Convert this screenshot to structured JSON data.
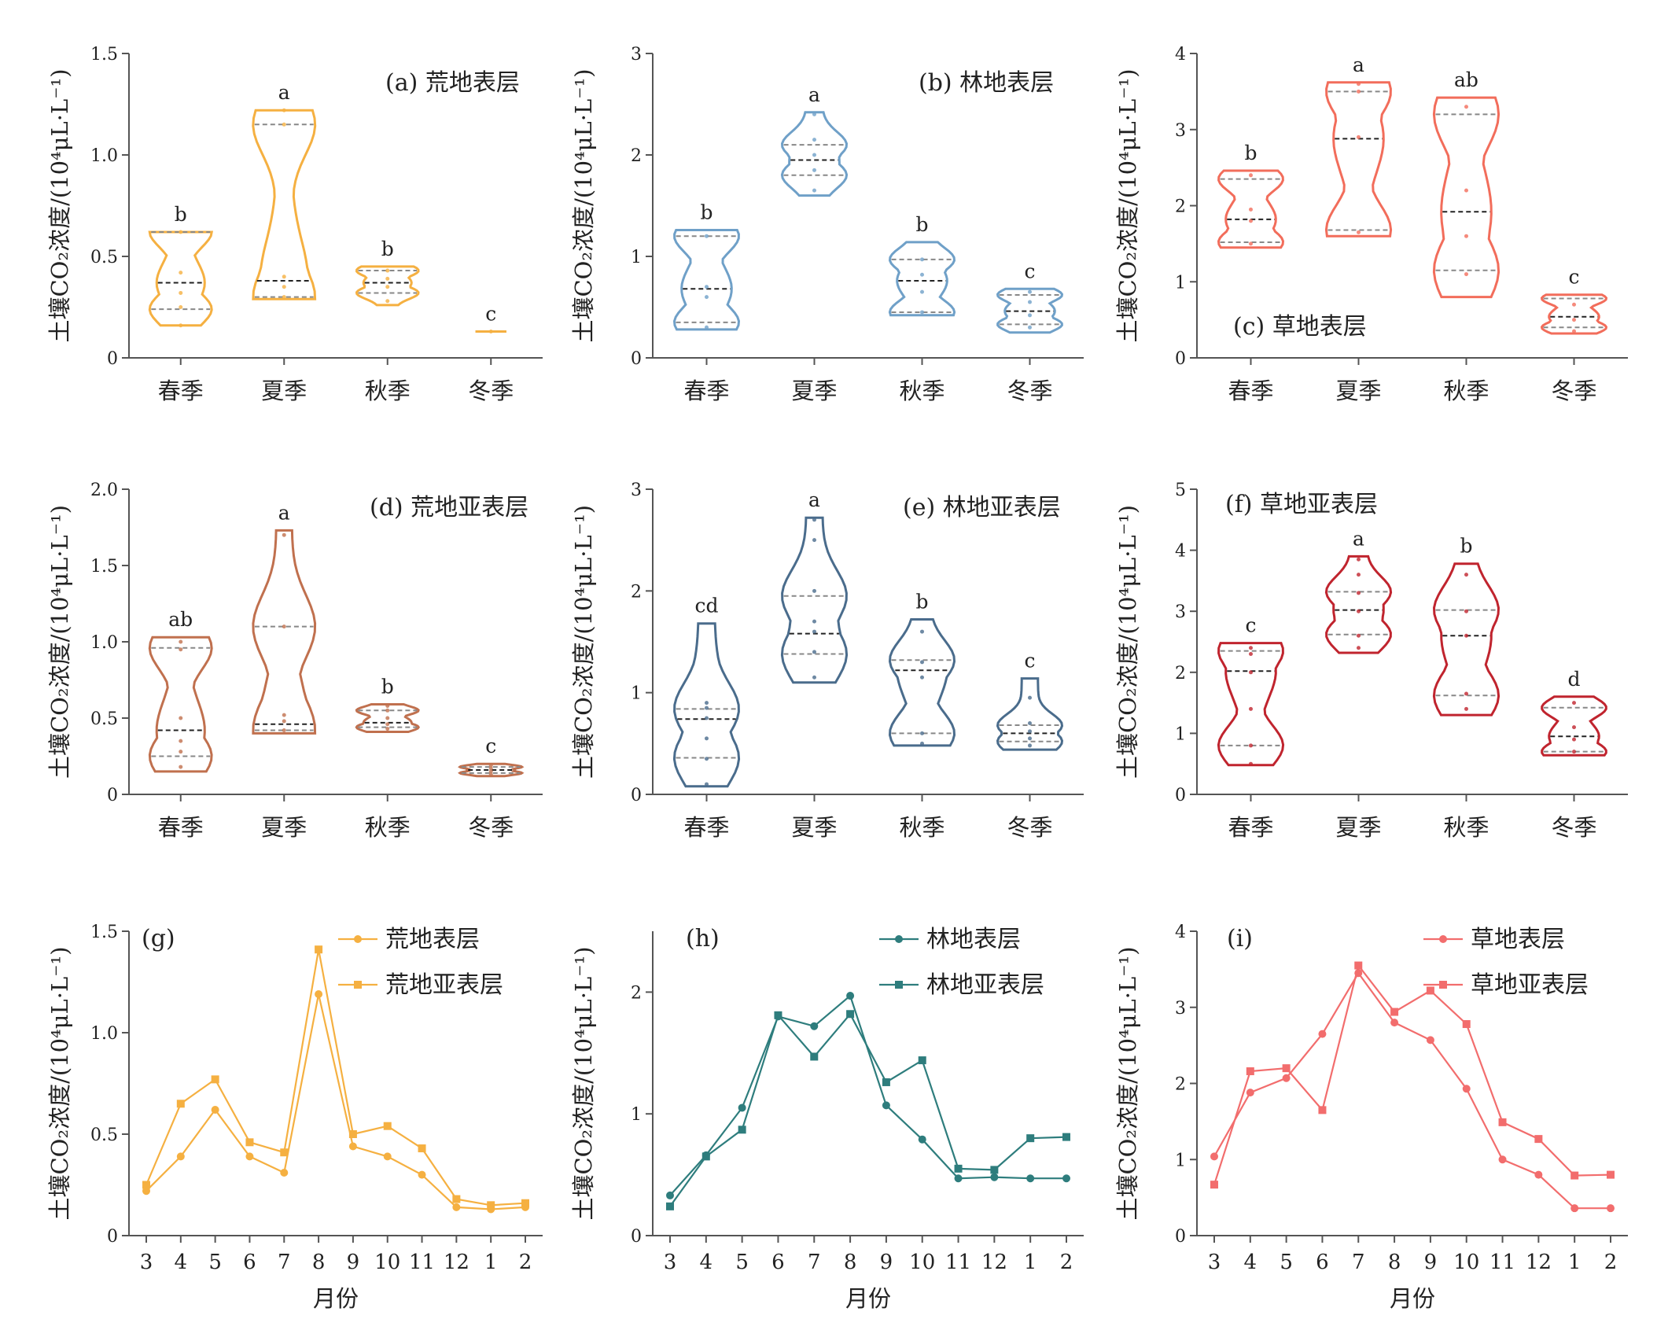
{
  "chart_data": [
    {
      "id": "a",
      "type": "violin",
      "title": "(a) 荒地表层",
      "ylabel": "土壤CO₂浓度/(10⁴μL·L⁻¹)",
      "ylim": [
        0,
        1.5
      ],
      "yticks": [
        0,
        0.5,
        1.0,
        1.5
      ],
      "ytick_labels": [
        "0",
        "0.5",
        "1.0",
        "1.5"
      ],
      "categories": [
        "春季",
        "夏季",
        "秋季",
        "冬季"
      ],
      "color": "#f5b041",
      "violins": [
        {
          "min": 0.16,
          "max": 0.62,
          "median": 0.37,
          "q1": 0.24,
          "q3": 0.62,
          "points": [
            0.16,
            0.25,
            0.32,
            0.42,
            0.62
          ],
          "label": "b"
        },
        {
          "min": 0.29,
          "max": 1.22,
          "median": 0.38,
          "q1": 0.3,
          "q3": 1.15,
          "points": [
            0.3,
            0.35,
            0.4,
            1.15,
            1.22
          ],
          "label": "a"
        },
        {
          "min": 0.26,
          "max": 0.45,
          "median": 0.37,
          "q1": 0.32,
          "q3": 0.43,
          "points": [
            0.28,
            0.35,
            0.39,
            0.43
          ],
          "label": "b"
        },
        {
          "min": 0.13,
          "max": 0.13,
          "median": 0.13,
          "q1": 0.13,
          "q3": 0.13,
          "points": [
            0.13
          ],
          "label": "c"
        }
      ]
    },
    {
      "id": "b",
      "type": "violin",
      "title": "(b) 林地表层",
      "ylabel": "土壤CO₂浓度/(10⁴μL·L⁻¹)",
      "ylim": [
        0,
        3
      ],
      "yticks": [
        0,
        1,
        2,
        3
      ],
      "ytick_labels": [
        "0",
        "1",
        "2",
        "3"
      ],
      "categories": [
        "春季",
        "夏季",
        "秋季",
        "冬季"
      ],
      "color": "#6fa0c8",
      "violins": [
        {
          "min": 0.28,
          "max": 1.26,
          "median": 0.68,
          "q1": 0.35,
          "q3": 1.2,
          "points": [
            0.3,
            0.6,
            0.7,
            1.2
          ],
          "label": "b"
        },
        {
          "min": 1.6,
          "max": 2.42,
          "median": 1.95,
          "q1": 1.8,
          "q3": 2.1,
          "points": [
            1.65,
            1.85,
            2.0,
            2.15,
            2.4
          ],
          "label": "a"
        },
        {
          "min": 0.42,
          "max": 1.14,
          "median": 0.76,
          "q1": 0.45,
          "q3": 0.97,
          "points": [
            0.45,
            0.65,
            0.82,
            0.97
          ],
          "label": "b"
        },
        {
          "min": 0.25,
          "max": 0.68,
          "median": 0.46,
          "q1": 0.33,
          "q3": 0.62,
          "points": [
            0.3,
            0.42,
            0.55,
            0.65
          ],
          "label": "c"
        }
      ]
    },
    {
      "id": "c",
      "type": "violin",
      "title": "(c) 草地表层",
      "ylabel": "土壤CO₂浓度/(10⁴μL·L⁻¹)",
      "ylim": [
        0,
        4
      ],
      "yticks": [
        0,
        1,
        2,
        3,
        4
      ],
      "ytick_labels": [
        "0",
        "1",
        "2",
        "3",
        "4"
      ],
      "categories": [
        "春季",
        "夏季",
        "秋季",
        "冬季"
      ],
      "color": "#f26d5b",
      "violins": [
        {
          "min": 1.45,
          "max": 2.46,
          "median": 1.82,
          "q1": 1.52,
          "q3": 2.35,
          "points": [
            1.5,
            1.8,
            1.95,
            2.4
          ],
          "label": "b"
        },
        {
          "min": 1.6,
          "max": 3.62,
          "median": 2.88,
          "q1": 1.68,
          "q3": 3.5,
          "points": [
            1.65,
            2.9,
            3.5,
            3.6
          ],
          "label": "a"
        },
        {
          "min": 0.8,
          "max": 3.42,
          "median": 1.92,
          "q1": 1.15,
          "q3": 3.2,
          "points": [
            1.1,
            1.6,
            2.2,
            3.3
          ],
          "label": "ab"
        },
        {
          "min": 0.32,
          "max": 0.83,
          "median": 0.54,
          "q1": 0.4,
          "q3": 0.78,
          "points": [
            0.35,
            0.5,
            0.7
          ],
          "label": "c"
        }
      ]
    },
    {
      "id": "d",
      "type": "violin",
      "title": "(d) 荒地亚表层",
      "ylabel": "土壤CO₂浓度/(10⁴μL·L⁻¹)",
      "ylim": [
        0,
        2.0
      ],
      "yticks": [
        0,
        0.5,
        1.0,
        1.5,
        2.0
      ],
      "ytick_labels": [
        "0",
        "0.5",
        "1.0",
        "1.5",
        "2.0"
      ],
      "categories": [
        "春季",
        "夏季",
        "秋季",
        "冬季"
      ],
      "color": "#c0704e",
      "violins": [
        {
          "min": 0.15,
          "max": 1.03,
          "median": 0.42,
          "q1": 0.25,
          "q3": 0.96,
          "points": [
            0.18,
            0.28,
            0.35,
            0.5,
            0.95,
            1.0
          ],
          "label": "ab"
        },
        {
          "min": 0.4,
          "max": 1.73,
          "median": 0.46,
          "q1": 0.42,
          "q3": 1.1,
          "points": [
            0.42,
            0.48,
            0.52,
            1.1,
            1.7
          ],
          "label": "a"
        },
        {
          "min": 0.41,
          "max": 0.59,
          "median": 0.47,
          "q1": 0.44,
          "q3": 0.55,
          "points": [
            0.43,
            0.46,
            0.5,
            0.55,
            0.58
          ],
          "label": "b"
        },
        {
          "min": 0.12,
          "max": 0.2,
          "median": 0.16,
          "q1": 0.14,
          "q3": 0.18,
          "points": [
            0.13,
            0.15,
            0.17,
            0.19
          ],
          "label": "c"
        }
      ]
    },
    {
      "id": "e",
      "type": "violin",
      "title": "(e) 林地亚表层",
      "ylabel": "土壤CO₂浓度/(10⁴μL·L⁻¹)",
      "ylim": [
        0,
        3
      ],
      "yticks": [
        0,
        1,
        2,
        3
      ],
      "ytick_labels": [
        "0",
        "1",
        "2",
        "3"
      ],
      "categories": [
        "春季",
        "夏季",
        "秋季",
        "冬季"
      ],
      "color": "#4a6c8c",
      "violins": [
        {
          "min": 0.08,
          "max": 1.68,
          "median": 0.74,
          "q1": 0.36,
          "q3": 0.84,
          "points": [
            0.1,
            0.35,
            0.55,
            0.75,
            0.85,
            0.9
          ],
          "label": "cd"
        },
        {
          "min": 1.1,
          "max": 2.72,
          "median": 1.58,
          "q1": 1.38,
          "q3": 1.95,
          "points": [
            1.15,
            1.4,
            1.6,
            1.7,
            2.0,
            2.5,
            2.7
          ],
          "label": "a"
        },
        {
          "min": 0.48,
          "max": 1.72,
          "median": 1.22,
          "q1": 0.6,
          "q3": 1.32,
          "points": [
            0.5,
            0.6,
            1.15,
            1.3,
            1.6
          ],
          "label": "b"
        },
        {
          "min": 0.44,
          "max": 1.14,
          "median": 0.6,
          "q1": 0.52,
          "q3": 0.68,
          "points": [
            0.48,
            0.55,
            0.62,
            0.7,
            0.95
          ],
          "label": "c"
        }
      ]
    },
    {
      "id": "f",
      "type": "violin",
      "title": "(f) 草地亚表层",
      "ylabel": "土壤CO₂浓度/(10⁴μL·L⁻¹)",
      "ylim": [
        0,
        5
      ],
      "yticks": [
        0,
        1,
        2,
        3,
        4,
        5
      ],
      "ytick_labels": [
        "0",
        "1",
        "2",
        "3",
        "4",
        "5"
      ],
      "categories": [
        "春季",
        "夏季",
        "秋季",
        "冬季"
      ],
      "color": "#c0242e",
      "violins": [
        {
          "min": 0.48,
          "max": 2.48,
          "median": 2.02,
          "q1": 0.8,
          "q3": 2.35,
          "points": [
            0.5,
            0.8,
            1.4,
            2.0,
            2.3,
            2.4
          ],
          "label": "c"
        },
        {
          "min": 2.32,
          "max": 3.9,
          "median": 3.02,
          "q1": 2.62,
          "q3": 3.32,
          "points": [
            2.4,
            2.6,
            3.0,
            3.3,
            3.6,
            3.85
          ],
          "label": "a"
        },
        {
          "min": 1.3,
          "max": 3.78,
          "median": 2.6,
          "q1": 1.62,
          "q3": 3.02,
          "points": [
            1.4,
            1.65,
            2.6,
            3.0,
            3.6
          ],
          "label": "b"
        },
        {
          "min": 0.64,
          "max": 1.6,
          "median": 0.95,
          "q1": 0.7,
          "q3": 1.42,
          "points": [
            0.7,
            0.9,
            1.1,
            1.5
          ],
          "label": "d"
        }
      ]
    },
    {
      "id": "g",
      "type": "line",
      "title": "(g)",
      "ylabel": "土壤CO₂浓度/(10⁴μL·L⁻¹)",
      "xlabel": "月份",
      "ylim": [
        0,
        1.5
      ],
      "yticks": [
        0,
        0.5,
        1.0,
        1.5
      ],
      "ytick_labels": [
        "0",
        "0.5",
        "1.0",
        "1.5"
      ],
      "x": [
        "3",
        "4",
        "5",
        "6",
        "7",
        "8",
        "9",
        "10",
        "11",
        "12",
        "1",
        "2"
      ],
      "series": [
        {
          "name": "荒地表层",
          "color": "#f5b041",
          "marker": "circle",
          "values": [
            0.22,
            0.39,
            0.62,
            0.39,
            0.31,
            1.19,
            0.44,
            0.39,
            0.3,
            0.14,
            0.13,
            0.14
          ]
        },
        {
          "name": "荒地亚表层",
          "color": "#f5b041",
          "marker": "square",
          "values": [
            0.25,
            0.65,
            0.77,
            0.46,
            0.41,
            1.41,
            0.5,
            0.54,
            0.43,
            0.18,
            0.15,
            0.16
          ]
        }
      ]
    },
    {
      "id": "h",
      "type": "line",
      "title": "(h)",
      "ylabel": "土壤CO₂浓度/(10⁴μL·L⁻¹)",
      "xlabel": "月份",
      "ylim": [
        0,
        2.5
      ],
      "yticks": [
        0,
        1,
        2
      ],
      "ytick_labels": [
        "0",
        "1",
        "2"
      ],
      "x": [
        "3",
        "4",
        "5",
        "6",
        "7",
        "8",
        "9",
        "10",
        "11",
        "12",
        "1",
        "2"
      ],
      "series": [
        {
          "name": "林地表层",
          "color": "#2e7d7d",
          "marker": "circle",
          "values": [
            0.33,
            0.66,
            1.05,
            1.8,
            1.72,
            1.97,
            1.07,
            0.79,
            0.47,
            0.48,
            0.47,
            0.47
          ]
        },
        {
          "name": "林地亚表层",
          "color": "#2e7d7d",
          "marker": "square",
          "values": [
            0.24,
            0.65,
            0.87,
            1.81,
            1.47,
            1.82,
            1.26,
            1.44,
            0.55,
            0.54,
            0.8,
            0.81
          ]
        }
      ]
    },
    {
      "id": "i",
      "type": "line",
      "title": "(i)",
      "ylabel": "土壤CO₂浓度/(10⁴μL·L⁻¹)",
      "xlabel": "月份",
      "ylim": [
        0,
        4
      ],
      "yticks": [
        0,
        1,
        2,
        3,
        4
      ],
      "ytick_labels": [
        "0",
        "1",
        "2",
        "3",
        "4"
      ],
      "x": [
        "3",
        "4",
        "5",
        "6",
        "7",
        "8",
        "9",
        "10",
        "11",
        "12",
        "1",
        "2"
      ],
      "series": [
        {
          "name": "草地表层",
          "color": "#f26d6d",
          "marker": "circle",
          "values": [
            1.04,
            1.88,
            2.07,
            2.65,
            3.45,
            2.8,
            2.57,
            1.93,
            1.0,
            0.8,
            0.36,
            0.36
          ]
        },
        {
          "name": "草地亚表层",
          "color": "#f26d6d",
          "marker": "square",
          "values": [
            0.67,
            2.16,
            2.2,
            1.65,
            3.55,
            2.94,
            3.22,
            2.78,
            1.49,
            1.27,
            0.79,
            0.8
          ]
        }
      ]
    }
  ]
}
